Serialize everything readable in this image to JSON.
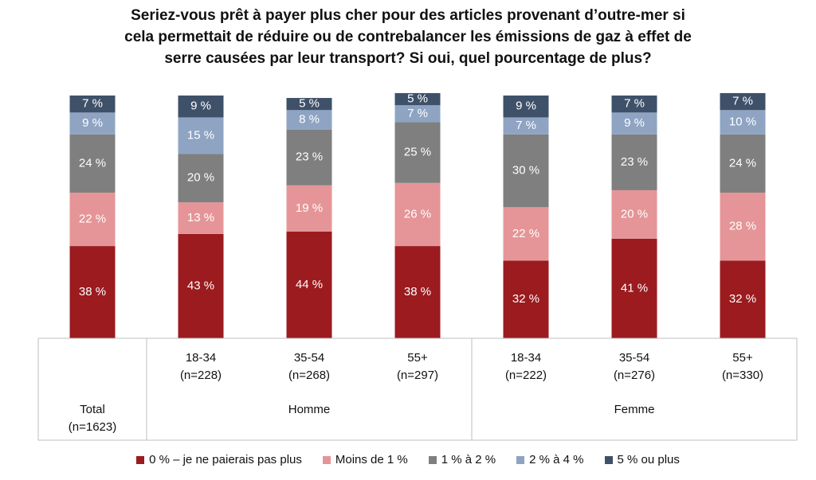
{
  "chart_data": {
    "type": "stacked_bar",
    "title": "Seriez-vous prêt à payer plus cher pour des articles provenant d’outre-mer si\ncela permettait de réduire ou de contrebalancer les émissions de gaz à effet de\nserre causées par leur transport? Si oui, quel pourcentage de plus?",
    "categories": [
      "Total\n(n=1623)",
      "18-34\n(n=228)",
      "35-54\n(n=268)",
      "55+\n(n=297)",
      "18-34\n(n=222)",
      "35-54\n(n=276)",
      "55+\n(n=330)"
    ],
    "groups": [
      {
        "name": "Homme",
        "first": 1,
        "last": 3
      },
      {
        "name": "Femme",
        "first": 4,
        "last": 6
      }
    ],
    "series": [
      {
        "name": "0 % – je ne paierais pas plus",
        "color": "#9b1b1f",
        "values": [
          38,
          43,
          44,
          38,
          32,
          41,
          32
        ],
        "value_labels": [
          "38 %",
          "43 %",
          "44 %",
          "38 %",
          "32 %",
          "41 %",
          "32 %"
        ]
      },
      {
        "name": "Moins de 1 %",
        "color": "#e59597",
        "values": [
          22,
          13,
          19,
          26,
          22,
          20,
          28
        ],
        "value_labels": [
          "22 %",
          "13 %",
          "19 %",
          "26 %",
          "22 %",
          "20 %",
          "28 %"
        ]
      },
      {
        "name": "1 % à 2 %",
        "color": "#7f7f7f",
        "values": [
          24,
          20,
          23,
          25,
          30,
          23,
          24
        ],
        "value_labels": [
          "24 %",
          "20 %",
          "23 %",
          "25 %",
          "30 %",
          "23 %",
          "24 %"
        ]
      },
      {
        "name": "2 % à 4 %",
        "color": "#8ea4c2",
        "values": [
          9,
          15,
          8,
          7,
          7,
          9,
          10
        ],
        "value_labels": [
          "9 %",
          "15 %",
          "8 %",
          "7 %",
          "7 %",
          "9 %",
          "10 %"
        ]
      },
      {
        "name": "5 % ou plus",
        "color": "#3f5169",
        "values": [
          7,
          9,
          5,
          5,
          9,
          7,
          7
        ],
        "value_labels": [
          "7 %",
          "9 %",
          "5 %",
          "5 %",
          "9 %",
          "7 %",
          "7 %"
        ]
      }
    ],
    "legend": "bottom"
  }
}
